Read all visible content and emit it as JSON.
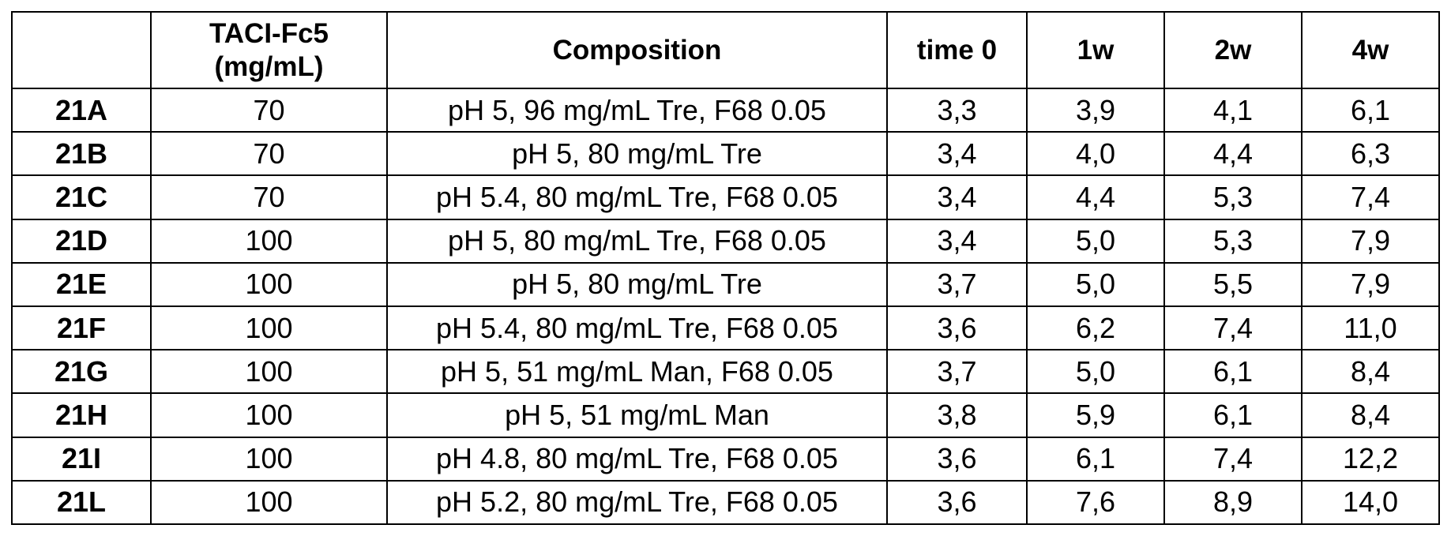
{
  "table": {
    "headers": {
      "id": "",
      "concentration_line1": "TACI-Fc5",
      "concentration_line2": "(mg/mL)",
      "composition": "Composition",
      "time0": "time 0",
      "w1": "1w",
      "w2": "2w",
      "w4": "4w"
    },
    "rows": [
      {
        "id": "21A",
        "concentration": "70",
        "composition": "pH 5, 96 mg/mL Tre, F68 0.05",
        "time0": "3,3",
        "w1": "3,9",
        "w2": "4,1",
        "w4": "6,1"
      },
      {
        "id": "21B",
        "concentration": "70",
        "composition": "pH 5, 80 mg/mL Tre",
        "time0": "3,4",
        "w1": "4,0",
        "w2": "4,4",
        "w4": "6,3"
      },
      {
        "id": "21C",
        "concentration": "70",
        "composition": "pH 5.4, 80 mg/mL Tre, F68 0.05",
        "time0": "3,4",
        "w1": "4,4",
        "w2": "5,3",
        "w4": "7,4"
      },
      {
        "id": "21D",
        "concentration": "100",
        "composition": "pH 5, 80 mg/mL Tre, F68 0.05",
        "time0": "3,4",
        "w1": "5,0",
        "w2": "5,3",
        "w4": "7,9"
      },
      {
        "id": "21E",
        "concentration": "100",
        "composition": "pH 5, 80 mg/mL Tre",
        "time0": "3,7",
        "w1": "5,0",
        "w2": "5,5",
        "w4": "7,9"
      },
      {
        "id": "21F",
        "concentration": "100",
        "composition": "pH 5.4, 80 mg/mL Tre, F68 0.05",
        "time0": "3,6",
        "w1": "6,2",
        "w2": "7,4",
        "w4": "11,0"
      },
      {
        "id": "21G",
        "concentration": "100",
        "composition": "pH 5, 51 mg/mL Man, F68 0.05",
        "time0": "3,7",
        "w1": "5,0",
        "w2": "6,1",
        "w4": "8,4"
      },
      {
        "id": "21H",
        "concentration": "100",
        "composition": "pH 5, 51 mg/mL Man",
        "time0": "3,8",
        "w1": "5,9",
        "w2": "6,1",
        "w4": "8,4"
      },
      {
        "id": "21I",
        "concentration": "100",
        "composition": "pH 4.8, 80 mg/mL Tre, F68 0.05",
        "time0": "3,6",
        "w1": "6,1",
        "w2": "7,4",
        "w4": "12,2"
      },
      {
        "id": "21L",
        "concentration": "100",
        "composition": "pH 5.2, 80 mg/mL Tre, F68 0.05",
        "time0": "3,6",
        "w1": "7,6",
        "w2": "8,9",
        "w4": "14,0"
      }
    ]
  }
}
